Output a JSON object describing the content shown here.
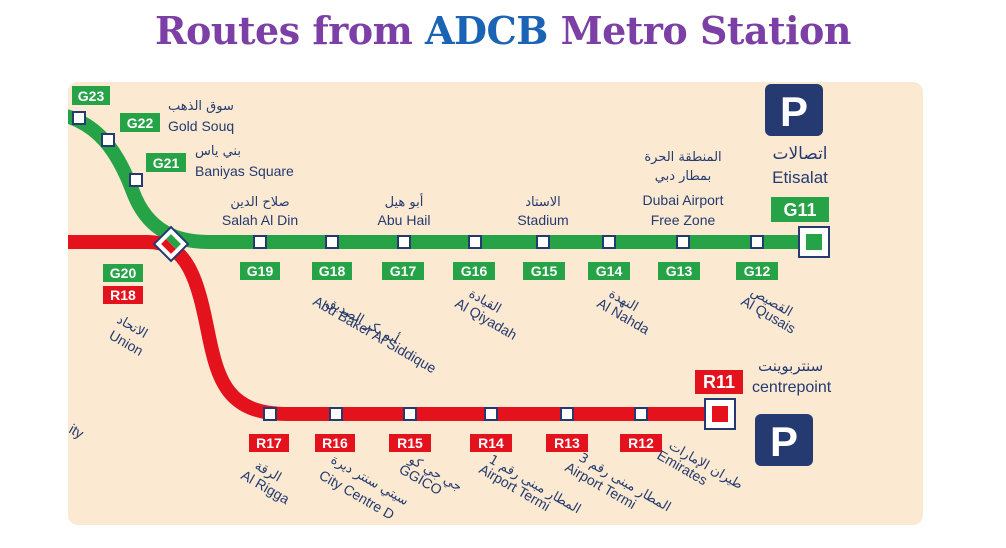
{
  "title": {
    "part1": "Routes from",
    "part2": "ADCB",
    "part3": "Metro Station"
  },
  "parking": {
    "label": "P"
  },
  "colors": {
    "green_line": "#26a347",
    "red_line": "#e4121d",
    "station_fill": "#ffffff",
    "text": "#243a70",
    "map_bg": "#fbe9d1"
  },
  "green_stations": [
    {
      "code": "G23",
      "en": "",
      "ar": ""
    },
    {
      "code": "G22",
      "en": "Gold Souq",
      "ar": "سوق الذهب"
    },
    {
      "code": "G21",
      "en": "Baniyas Square",
      "ar": "بني ياس"
    },
    {
      "code": "G19",
      "en": "Salah Al Din",
      "ar": "صلاح الدين"
    },
    {
      "code": "G18",
      "en": "Abu Baker Al Siddique",
      "ar": "أبو بكر الصديق"
    },
    {
      "code": "G17",
      "en": "Abu Hail",
      "ar": "أبو هيل"
    },
    {
      "code": "G16",
      "en": "Al Qiyadah",
      "ar": "القيادة"
    },
    {
      "code": "G15",
      "en": "Stadium",
      "ar": "الاستاد"
    },
    {
      "code": "G14",
      "en": "Al Nahda",
      "ar": "النهدة"
    },
    {
      "code": "G13",
      "en": "Dubai Airport Free Zone",
      "en1": "Dubai Airport",
      "en2": "Free Zone",
      "ar1": "المنطقة الحرة",
      "ar2": "بمطار دبي"
    },
    {
      "code": "G12",
      "en": "Al Qusais",
      "ar": "القصيص"
    },
    {
      "code": "G11",
      "en": "Etisalat",
      "ar": "اتصالات"
    }
  ],
  "interchange": {
    "code_green": "G20",
    "code_red": "R18",
    "en": "Union",
    "ar": "الاتحاد"
  },
  "red_stations": [
    {
      "code": "R17",
      "en": "Al Rigga",
      "ar": "الرقة"
    },
    {
      "code": "R16",
      "en": "City Centre D",
      "ar": "سيتي سنتر ديرة"
    },
    {
      "code": "R15",
      "en": "GGICO",
      "ar": "جي جي كو"
    },
    {
      "code": "R14",
      "en": "Airport Termi",
      "ar": "المطار مبنى رقم 1"
    },
    {
      "code": "R13",
      "en": "Airport Termi",
      "ar": "المطار مبنى رقم 3"
    },
    {
      "code": "R12",
      "en": "Emirates",
      "ar": "طيران الإمارات"
    },
    {
      "code": "R11",
      "en": "centrepoint",
      "ar": "سنتربوينت"
    }
  ],
  "edge_text": {
    "left_fragment": "ity"
  }
}
